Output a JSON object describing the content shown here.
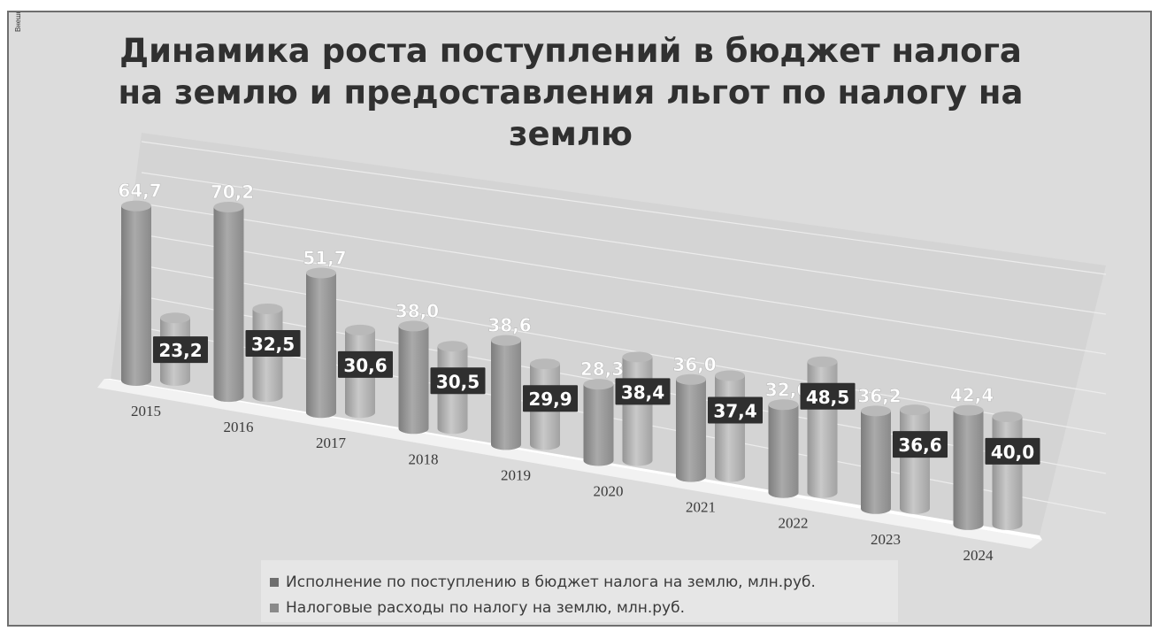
{
  "page": {
    "stamp_text": "Внешнее неразборчивое штампование"
  },
  "chart_data": {
    "type": "bar",
    "style": "3d-cylinder",
    "title": "Динамика роста поступлений в бюджет налога на землю и предоставления льгот по налогу на землю",
    "categories": [
      "2015",
      "2016",
      "2017",
      "2018",
      "2019",
      "2020",
      "2021",
      "2022",
      "2023",
      "2024"
    ],
    "series": [
      {
        "name": "Исполнение по поступлению в бюджет налога на землю, млн.руб.",
        "values": [
          64.7,
          70.2,
          51.7,
          38.0,
          38.6,
          28.3,
          36.0,
          32.6,
          36.2,
          42.4
        ],
        "labels": [
          "64,7",
          "70,2",
          "51,7",
          "38,0",
          "38,6",
          "28,3",
          "36,0",
          "32,6",
          "36,2",
          "42,4"
        ],
        "color": "#9b9b9b"
      },
      {
        "name": "Налоговые расходы по налогу на землю, млн.руб.",
        "values": [
          23.2,
          32.5,
          30.6,
          30.5,
          29.9,
          38.4,
          37.4,
          48.5,
          36.6,
          40.0
        ],
        "labels": [
          "23,2",
          "32,5",
          "30,6",
          "30,5",
          "29,9",
          "38,4",
          "37,4",
          "48,5",
          "36,6",
          "40,0"
        ],
        "color": "#b4b4b4"
      }
    ],
    "grid": true,
    "legend_position": "bottom"
  }
}
